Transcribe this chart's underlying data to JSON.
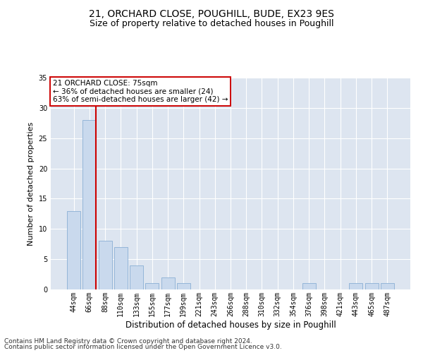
{
  "title1": "21, ORCHARD CLOSE, POUGHILL, BUDE, EX23 9ES",
  "title2": "Size of property relative to detached houses in Poughill",
  "xlabel": "Distribution of detached houses by size in Poughill",
  "ylabel": "Number of detached properties",
  "categories": [
    "44sqm",
    "66sqm",
    "88sqm",
    "110sqm",
    "133sqm",
    "155sqm",
    "177sqm",
    "199sqm",
    "221sqm",
    "243sqm",
    "266sqm",
    "288sqm",
    "310sqm",
    "332sqm",
    "354sqm",
    "376sqm",
    "398sqm",
    "421sqm",
    "443sqm",
    "465sqm",
    "487sqm"
  ],
  "values": [
    13,
    28,
    8,
    7,
    4,
    1,
    2,
    1,
    0,
    0,
    0,
    0,
    0,
    0,
    0,
    1,
    0,
    0,
    1,
    1,
    1
  ],
  "bar_color": "#c9d9ed",
  "bar_edge_color": "#8aafd4",
  "vline_color": "#cc0000",
  "vline_x": 1.425,
  "ylim": [
    0,
    35
  ],
  "yticks": [
    0,
    5,
    10,
    15,
    20,
    25,
    30,
    35
  ],
  "annotation_title": "21 ORCHARD CLOSE: 75sqm",
  "annotation_line1": "← 36% of detached houses are smaller (24)",
  "annotation_line2": "63% of semi-detached houses are larger (42) →",
  "annotation_box_color": "#ffffff",
  "annotation_box_edge": "#cc0000",
  "footer1": "Contains HM Land Registry data © Crown copyright and database right 2024.",
  "footer2": "Contains public sector information licensed under the Open Government Licence v3.0.",
  "bg_color": "#dde5f0",
  "fig_bg_color": "#ffffff",
  "title1_fontsize": 10,
  "title2_fontsize": 9,
  "xlabel_fontsize": 8.5,
  "ylabel_fontsize": 8,
  "tick_fontsize": 7,
  "annot_fontsize": 7.5,
  "footer_fontsize": 6.5
}
